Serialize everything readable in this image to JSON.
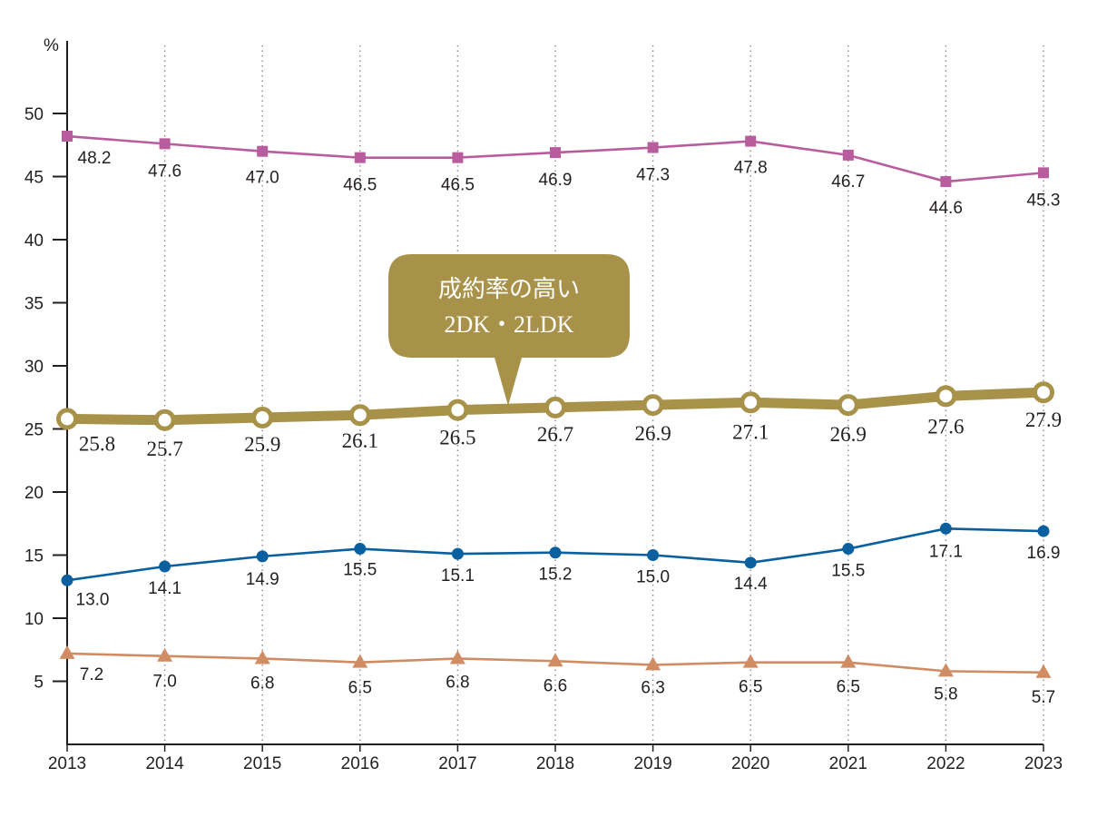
{
  "chart_data": {
    "type": "line",
    "x": [
      "2013",
      "2014",
      "2015",
      "2016",
      "2017",
      "2018",
      "2019",
      "2020",
      "2021",
      "2022",
      "2023"
    ],
    "y_unit": "%",
    "y_ticks": [
      5,
      10,
      15,
      20,
      25,
      30,
      35,
      40,
      45,
      50
    ],
    "ylim": [
      0,
      55
    ],
    "grid": "vertical dotted lines at each year",
    "series": [
      {
        "key": "pink",
        "color": "#b85c9e",
        "marker": "square",
        "stroke_weight": "thin",
        "values": [
          48.2,
          47.6,
          47.0,
          46.5,
          46.5,
          46.9,
          47.3,
          47.8,
          46.7,
          44.6,
          45.3
        ],
        "labels": [
          "48.2",
          "47.6",
          "47.0",
          "46.5",
          "46.5",
          "46.9",
          "47.3",
          "47.8",
          "46.7",
          "44.6",
          "45.3"
        ]
      },
      {
        "key": "gold",
        "color": "#a8924a",
        "marker": "open-circle",
        "stroke_weight": "thick",
        "values": [
          25.8,
          25.7,
          25.9,
          26.1,
          26.5,
          26.7,
          26.9,
          27.1,
          26.9,
          27.6,
          27.9
        ],
        "labels": [
          "25.8",
          "25.7",
          "25.9",
          "26.1",
          "26.5",
          "26.7",
          "26.9",
          "27.1",
          "26.9",
          "27.6",
          "27.9"
        ]
      },
      {
        "key": "blue",
        "color": "#0a5f9e",
        "marker": "circle",
        "stroke_weight": "thin",
        "values": [
          13.0,
          14.1,
          14.9,
          15.5,
          15.1,
          15.2,
          15.0,
          14.4,
          15.5,
          17.1,
          16.9
        ],
        "labels": [
          "13.0",
          "14.1",
          "14.9",
          "15.5",
          "15.1",
          "15.2",
          "15.0",
          "14.4",
          "15.5",
          "17.1",
          "16.9"
        ]
      },
      {
        "key": "tan",
        "color": "#d08c63",
        "marker": "triangle",
        "stroke_weight": "thin",
        "values": [
          7.2,
          7.0,
          6.8,
          6.5,
          6.8,
          6.6,
          6.3,
          6.5,
          6.5,
          5.8,
          5.7
        ],
        "labels": [
          "7.2",
          "7.0",
          "6.8",
          "6.5",
          "6.8",
          "6.6",
          "6.3",
          "6.5",
          "6.5",
          "5.8",
          "5.7"
        ]
      }
    ],
    "annotation": {
      "lines": [
        "成約率の高い",
        "2DK・2LDK"
      ],
      "color": "#a8924a",
      "points_to_series": "gold"
    }
  }
}
